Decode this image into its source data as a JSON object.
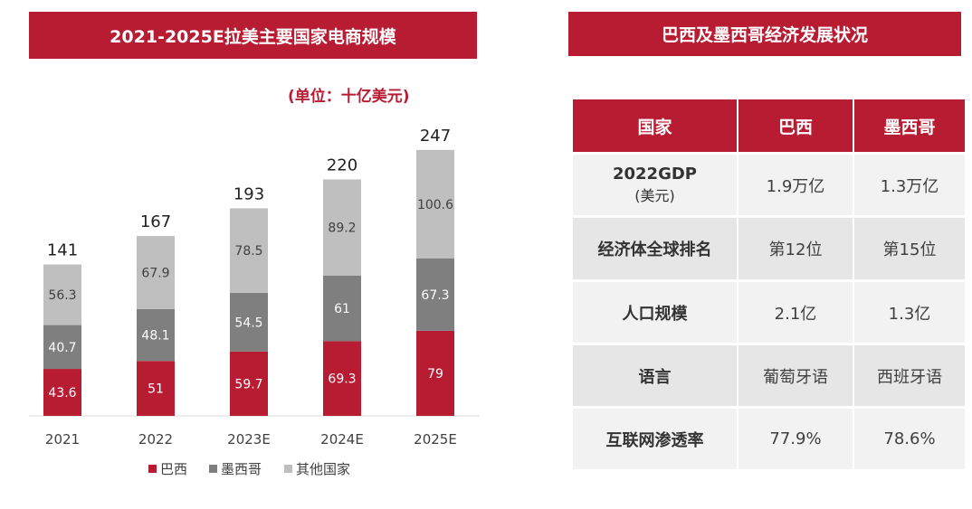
{
  "left_title": "2021-2025E拉美主要国家电商规模",
  "unit": "(单位：十亿美元)",
  "chart_data": {
    "type": "bar",
    "stacked": true,
    "title": "2021-2025E拉美主要国家电商规模",
    "unit": "(单位：十亿美元)",
    "categories": [
      "2021",
      "2022",
      "2023E",
      "2024E",
      "2025E"
    ],
    "series": [
      {
        "name": "巴西",
        "color": "#b81c33",
        "values": [
          43.6,
          51,
          59.7,
          69.3,
          79
        ]
      },
      {
        "name": "墨西哥",
        "color": "#7f7f7f",
        "values": [
          40.7,
          48.1,
          54.5,
          61,
          67.3
        ]
      },
      {
        "name": "其他国家",
        "color": "#bfbfbf",
        "values": [
          56.3,
          67.9,
          78.5,
          89.2,
          100.6
        ]
      }
    ],
    "totals": [
      "141",
      "167",
      "193",
      "220",
      "247"
    ],
    "value_labels": [
      [
        "43.6",
        "51",
        "59.7",
        "69.3",
        "79"
      ],
      [
        "40.7",
        "48.1",
        "54.5",
        "61",
        "67.3"
      ],
      [
        "56.3",
        "67.9",
        "78.5",
        "89.2",
        "100.6"
      ]
    ],
    "legend_position": "bottom",
    "grid": false
  },
  "right_title": "巴西及墨西哥经济发展状况",
  "table": {
    "headers": [
      "国家",
      "巴西",
      "墨西哥"
    ],
    "rows": [
      {
        "label": "2022GDP",
        "sublabel": "(美元)",
        "brazil": "1.9万亿",
        "mexico": "1.3万亿"
      },
      {
        "label": "经济体全球排名",
        "brazil": "第12位",
        "mexico": "第15位"
      },
      {
        "label": "人口规模",
        "brazil": "2.1亿",
        "mexico": "1.3亿"
      },
      {
        "label": "语言",
        "brazil": "葡萄牙语",
        "mexico": "西班牙语"
      },
      {
        "label": "互联网渗透率",
        "brazil": "77.9%",
        "mexico": "78.6%"
      }
    ]
  }
}
